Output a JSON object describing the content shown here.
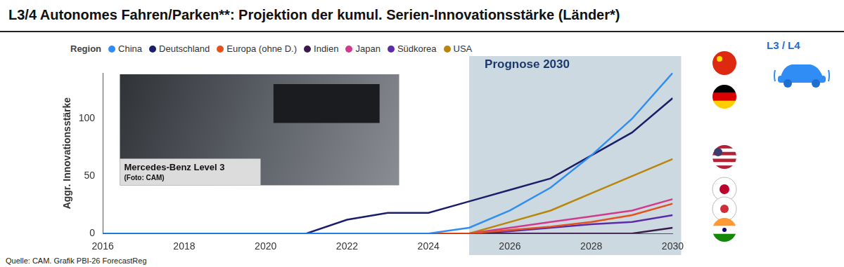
{
  "chart_data": {
    "type": "line",
    "title": "L3/4 Autonomes Fahren/Parken**: Projektion der kumul. Serien-Innovationsstärke (Länder*)",
    "legend_title": "Region",
    "legend": "top",
    "x": [
      2016,
      2017,
      2018,
      2019,
      2020,
      2021,
      2022,
      2023,
      2024,
      2025,
      2026,
      2027,
      2028,
      2029,
      2030
    ],
    "series": [
      {
        "name": "China",
        "color": "#2f8df5",
        "values": [
          0,
          0,
          0,
          0,
          0,
          0,
          0,
          0,
          0,
          5,
          20,
          40,
          68,
          100,
          140
        ]
      },
      {
        "name": "Deutschland",
        "color": "#1b1f6b",
        "values": [
          0,
          0,
          0,
          0,
          0,
          0,
          12,
          18,
          18,
          28,
          38,
          48,
          68,
          88,
          118
        ]
      },
      {
        "name": "Europa (ohne D.)",
        "color": "#e6501c",
        "values": [
          0,
          0,
          0,
          0,
          0,
          0,
          0,
          0,
          0,
          0,
          3,
          6,
          10,
          16,
          26
        ]
      },
      {
        "name": "Indien",
        "color": "#3a1a4a",
        "values": [
          0,
          0,
          0,
          0,
          0,
          0,
          0,
          0,
          0,
          0,
          0,
          0,
          0,
          0,
          5
        ]
      },
      {
        "name": "Japan",
        "color": "#d23a8c",
        "values": [
          0,
          0,
          0,
          0,
          0,
          0,
          0,
          0,
          0,
          0,
          5,
          10,
          15,
          20,
          30
        ]
      },
      {
        "name": "Südkorea",
        "color": "#5a2da6",
        "values": [
          0,
          0,
          0,
          0,
          0,
          0,
          0,
          0,
          0,
          0,
          2,
          5,
          8,
          10,
          16
        ]
      },
      {
        "name": "USA",
        "color": "#b8860b",
        "values": [
          0,
          0,
          0,
          0,
          0,
          0,
          0,
          0,
          0,
          0,
          10,
          20,
          35,
          50,
          65
        ]
      }
    ],
    "xlim": [
      2016,
      2030
    ],
    "xticks": [
      2016,
      2018,
      2020,
      2022,
      2024,
      2026,
      2028,
      2030
    ],
    "ylim": [
      0,
      140
    ],
    "yticks": [
      0,
      50,
      100
    ],
    "y_label": "Aggr. Innovationsstärke",
    "grid": false,
    "forecast": {
      "x": [
        2025,
        2030
      ],
      "label": "Prognose 2030"
    },
    "annotations": [
      "Mercedes-Benz Level 3",
      "(Foto: CAM)"
    ],
    "badge": "L3 / L4",
    "source": "Quelle: CAM. Grafik PBI-26 ForecastReg"
  }
}
